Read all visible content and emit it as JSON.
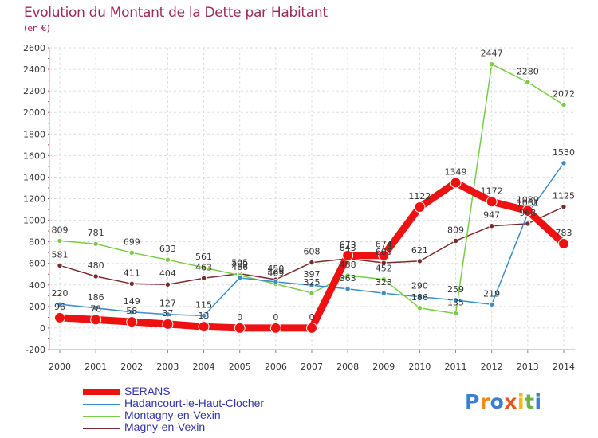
{
  "title": "Evolution du Montant de la Dette par Habitant",
  "subtitle": "(en €)",
  "logo": "Proxiti",
  "chart_data": {
    "type": "line",
    "title": "Evolution du Montant de la Dette par Habitant",
    "ylabel": "(en €)",
    "xlabel": "",
    "x": [
      "2000",
      "2001",
      "2002",
      "2003",
      "2004",
      "2005",
      "2006",
      "2007",
      "2008",
      "2009",
      "2010",
      "2011",
      "2012",
      "2013",
      "2014"
    ],
    "ylim": [
      -200,
      2600
    ],
    "yticks": [
      -200,
      0,
      200,
      400,
      600,
      800,
      1000,
      1200,
      1400,
      1600,
      1800,
      2000,
      2200,
      2400,
      2600
    ],
    "grid": true,
    "legend_position": "bottom-left",
    "series": [
      {
        "name": "SERANS",
        "color": "#ee1111",
        "values": [
          96,
          78,
          58,
          37,
          13,
          0,
          0,
          0,
          673,
          674,
          1122,
          1349,
          1172,
          1089,
          783
        ],
        "labels": [
          "96",
          "78",
          "58",
          "37",
          "13",
          "0",
          "0",
          "0",
          "673",
          "674",
          "1122",
          "1349",
          "1172",
          "1089",
          "783"
        ]
      },
      {
        "name": "Hadancourt-le-Haut-Clocher",
        "color": "#3b8cc8",
        "values": [
          220,
          186,
          149,
          127,
          115,
          466,
          429,
          397,
          363,
          323,
          290,
          259,
          219,
          1061,
          1530
        ],
        "labels": [
          "220",
          "186",
          "149",
          "127",
          "115",
          "466",
          "429",
          "397",
          "363",
          "323",
          "290",
          "259",
          "219",
          "1061",
          "1530"
        ]
      },
      {
        "name": "Montagny-en-Vexin",
        "color": "#77cc44",
        "values": [
          809,
          781,
          699,
          633,
          561,
          489,
          409,
          325,
          488,
          452,
          186,
          135,
          2447,
          2280,
          2072
        ],
        "labels": [
          "809",
          "781",
          "699",
          "633",
          "561",
          "489",
          "409",
          "325",
          "488",
          "452",
          "186",
          "135",
          "2447",
          "2280",
          "2072"
        ]
      },
      {
        "name": "Magny-en-Vexin",
        "color": "#7a2a2a",
        "values": [
          581,
          480,
          411,
          404,
          463,
          505,
          450,
          608,
          643,
          605,
          621,
          809,
          947,
          968,
          1125
        ],
        "labels": [
          "581",
          "480",
          "411",
          "404",
          "463",
          "505",
          "450",
          "608",
          "643",
          "605",
          "621",
          "809",
          "947",
          "968",
          "1125"
        ]
      }
    ]
  }
}
